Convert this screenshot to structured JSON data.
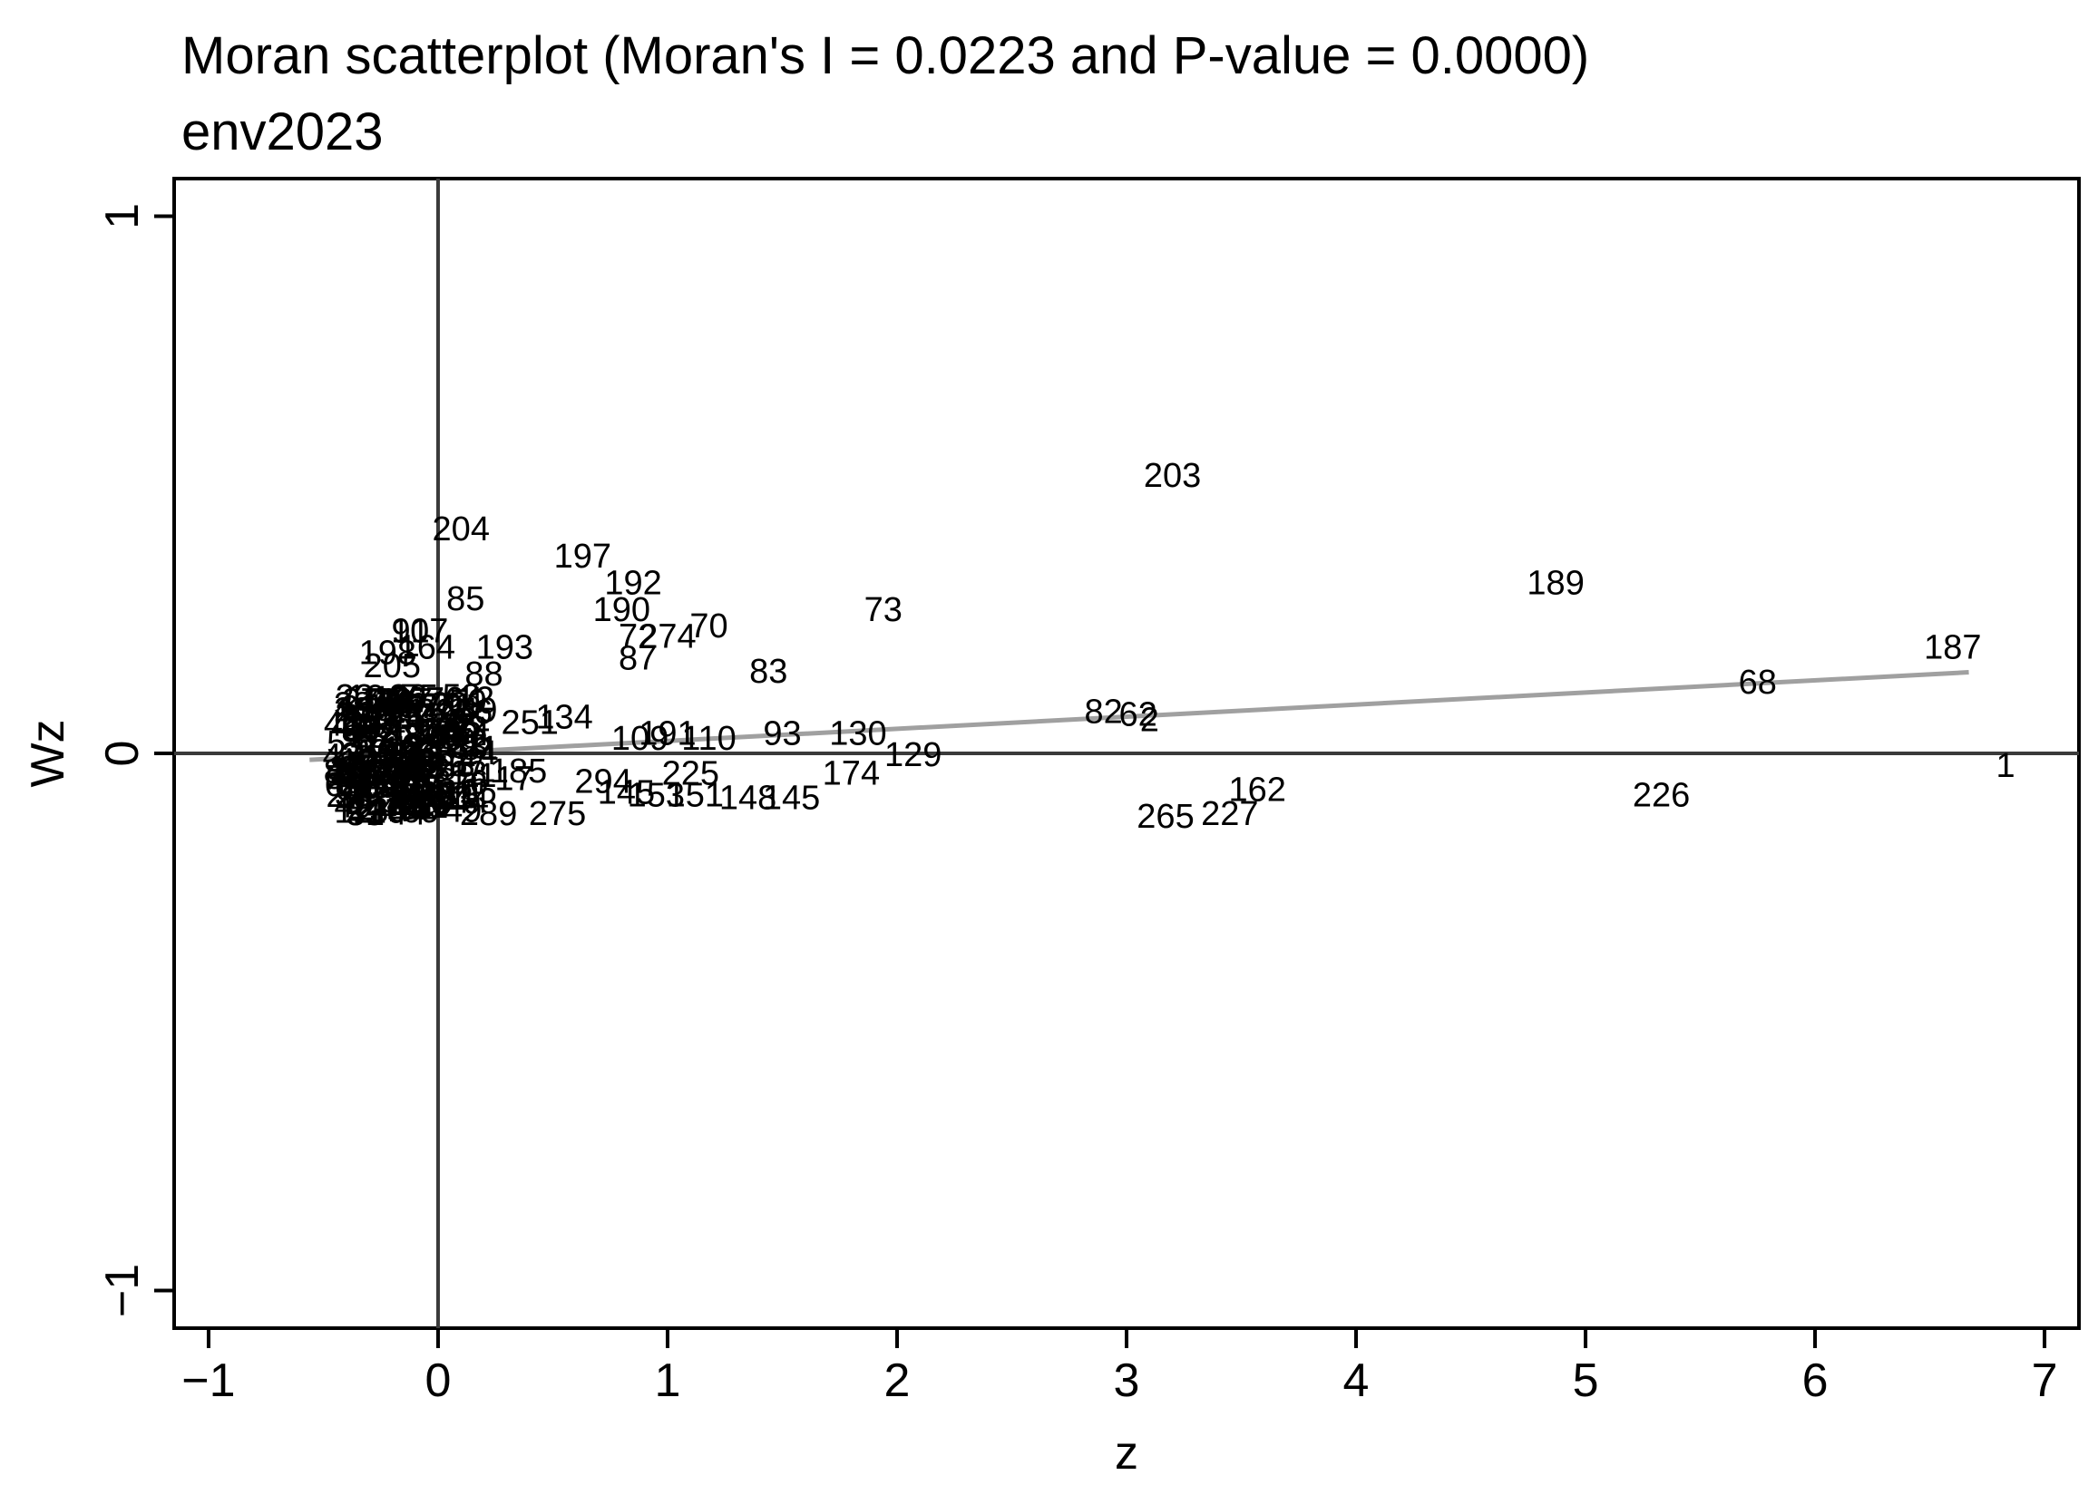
{
  "chart_data": {
    "type": "scatter",
    "title": "Moran scatterplot (Moran's I = 0.0223 and P-value = 0.0000)",
    "subtitle": "env2023",
    "xlabel": "z",
    "ylabel": "Wz",
    "xlim": [
      -1.15,
      7.15
    ],
    "ylim": [
      -1.07,
      1.07
    ],
    "xticks": [
      -1,
      0,
      1,
      2,
      3,
      4,
      5,
      6,
      7
    ],
    "yticks": [
      -1,
      0,
      1
    ],
    "xtick_labels": [
      "−1",
      "0",
      "1",
      "2",
      "3",
      "4",
      "5",
      "6",
      "7"
    ],
    "ytick_labels": [
      "−1",
      "0",
      "1"
    ],
    "grid": false,
    "reference_lines": {
      "x": 0,
      "y": 0
    },
    "fit_line": {
      "x": [
        -0.56,
        6.67
      ],
      "y": [
        -0.012,
        0.151
      ],
      "slope": 0.0223,
      "color": "#a0a0a0"
    },
    "marker_style": "point labels",
    "points": [
      {
        "label": "203",
        "x": 3.2,
        "y": 0.52
      },
      {
        "label": "204",
        "x": 0.1,
        "y": 0.42
      },
      {
        "label": "197",
        "x": 0.63,
        "y": 0.37
      },
      {
        "label": "192",
        "x": 0.85,
        "y": 0.32
      },
      {
        "label": "85",
        "x": 0.12,
        "y": 0.29
      },
      {
        "label": "190",
        "x": 0.8,
        "y": 0.27
      },
      {
        "label": "73",
        "x": 1.94,
        "y": 0.27
      },
      {
        "label": "70",
        "x": 1.18,
        "y": 0.24
      },
      {
        "label": "274",
        "x": 1.0,
        "y": 0.22
      },
      {
        "label": "72",
        "x": 0.87,
        "y": 0.22
      },
      {
        "label": "87",
        "x": 0.87,
        "y": 0.18
      },
      {
        "label": "189",
        "x": 4.87,
        "y": 0.32
      },
      {
        "label": "187",
        "x": 6.6,
        "y": 0.2
      },
      {
        "label": "68",
        "x": 5.75,
        "y": 0.135
      },
      {
        "label": "83",
        "x": 1.44,
        "y": 0.155
      },
      {
        "label": "193",
        "x": 0.29,
        "y": 0.2
      },
      {
        "label": "107",
        "x": -0.08,
        "y": 0.23
      },
      {
        "label": "91",
        "x": -0.12,
        "y": 0.23
      },
      {
        "label": "164",
        "x": -0.05,
        "y": 0.2
      },
      {
        "label": "198",
        "x": -0.22,
        "y": 0.19
      },
      {
        "label": "205",
        "x": -0.2,
        "y": 0.165
      },
      {
        "label": "88",
        "x": 0.2,
        "y": 0.15
      },
      {
        "label": "207",
        "x": -0.15,
        "y": 0.1
      },
      {
        "label": "134",
        "x": 0.55,
        "y": 0.07
      },
      {
        "label": "82",
        "x": 2.9,
        "y": 0.08
      },
      {
        "label": "62",
        "x": 3.05,
        "y": 0.075
      },
      {
        "label": "2",
        "x": 3.1,
        "y": 0.065
      },
      {
        "label": "130",
        "x": 1.83,
        "y": 0.04
      },
      {
        "label": "93",
        "x": 1.5,
        "y": 0.04
      },
      {
        "label": "191",
        "x": 1.0,
        "y": 0.04
      },
      {
        "label": "110",
        "x": 1.18,
        "y": 0.03
      },
      {
        "label": "109",
        "x": 0.88,
        "y": 0.03
      },
      {
        "label": "129",
        "x": 2.07,
        "y": 0.0
      },
      {
        "label": "174",
        "x": 1.8,
        "y": -0.035
      },
      {
        "label": "1",
        "x": 6.83,
        "y": -0.02
      },
      {
        "label": "162",
        "x": 3.57,
        "y": -0.065
      },
      {
        "label": "226",
        "x": 5.33,
        "y": -0.075
      },
      {
        "label": "265",
        "x": 3.17,
        "y": -0.115
      },
      {
        "label": "227",
        "x": 3.45,
        "y": -0.11
      },
      {
        "label": "145",
        "x": 1.54,
        "y": -0.08
      },
      {
        "label": "148",
        "x": 1.35,
        "y": -0.08
      },
      {
        "label": "151",
        "x": 1.12,
        "y": -0.075
      },
      {
        "label": "153",
        "x": 0.95,
        "y": -0.075
      },
      {
        "label": "145",
        "x": 0.82,
        "y": -0.07
      },
      {
        "label": "294",
        "x": 0.72,
        "y": -0.05
      },
      {
        "label": "225",
        "x": 1.1,
        "y": -0.035
      },
      {
        "label": "275",
        "x": 0.52,
        "y": -0.11
      },
      {
        "label": "289",
        "x": 0.22,
        "y": -0.11
      },
      {
        "label": "17",
        "x": 0.33,
        "y": -0.045
      },
      {
        "label": "185",
        "x": 0.35,
        "y": -0.03
      },
      {
        "label": "251",
        "x": 0.4,
        "y": 0.06
      },
      {
        "label": "211",
        "x": -0.3,
        "y": 0.1
      },
      {
        "label": "2",
        "x": -0.36,
        "y": -0.08
      },
      {
        "label": "2",
        "x": -0.32,
        "y": -0.1
      },
      {
        "label": "2",
        "x": -0.38,
        "y": 0.0
      }
    ]
  }
}
